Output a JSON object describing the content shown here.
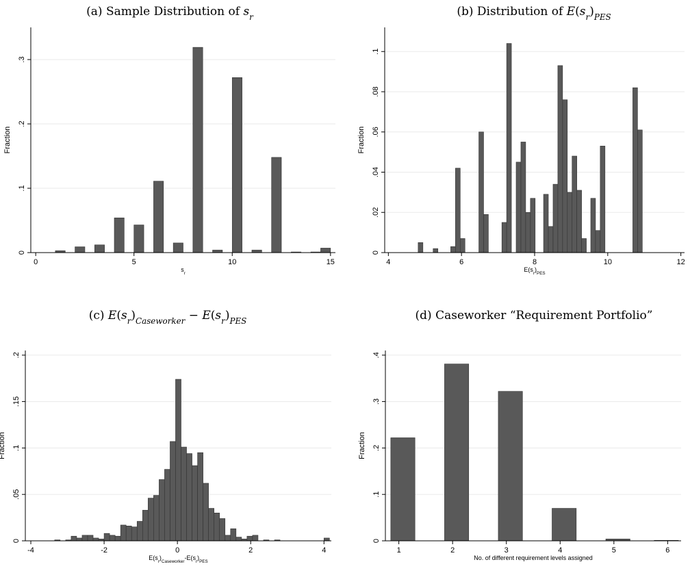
{
  "chart_data": [
    {
      "type": "histogram",
      "title": [
        {
          "text": "(a) Sample Distribution of "
        },
        {
          "text": "s",
          "italic": true
        },
        {
          "text": "r",
          "italic": true,
          "sub": true
        }
      ],
      "ylabel": "Fraction",
      "xlabel": [
        {
          "text": "s"
        },
        {
          "text": "r",
          "sub": true
        }
      ],
      "bins": [
        1,
        1.5,
        2,
        2.5,
        3,
        3.5,
        4,
        4.5,
        5,
        5.5,
        6,
        6.5,
        7,
        7.5,
        8,
        8.5,
        9,
        9.5,
        10,
        10.5,
        11,
        11.5,
        12,
        12.5,
        13,
        13.5,
        14,
        14.5,
        15
      ],
      "values": [
        0.003,
        0,
        0.009,
        0,
        0.012,
        0,
        0.054,
        0,
        0.043,
        0,
        0.111,
        0,
        0.015,
        0,
        0.319,
        0,
        0.004,
        0,
        0.272,
        0,
        0.004,
        0,
        0.148,
        0,
        0.001,
        0,
        0.001,
        0.007
      ],
      "xlim": [
        -0.25,
        15.25
      ],
      "xticks": [
        0,
        5,
        10,
        15
      ],
      "ylim": [
        0,
        0.35
      ],
      "yticks": [
        0,
        {
          "value": 0.1,
          "label": ".1"
        },
        {
          "value": 0.2,
          "label": ".2"
        },
        {
          "value": 0.3,
          "label": ".3"
        }
      ],
      "grid": true,
      "color": "#595959"
    },
    {
      "type": "histogram",
      "title": [
        {
          "text": "(b) Distribution of "
        },
        {
          "text": "E",
          "italic": true
        },
        {
          "text": "("
        },
        {
          "text": "s",
          "italic": true
        },
        {
          "text": "r",
          "italic": true,
          "sub": true
        },
        {
          "text": ")"
        },
        {
          "text": "PES",
          "italic": true,
          "sub": true
        }
      ],
      "ylabel": "Fraction",
      "xlabel": [
        {
          "text": "E(s"
        },
        {
          "text": "r",
          "sub": true
        },
        {
          "text": ")"
        },
        {
          "text": "PES",
          "sub": true
        }
      ],
      "bins": [
        4.815,
        4.945,
        5.225,
        5.355,
        5.705,
        5.835,
        5.965,
        6.095,
        6.475,
        6.605,
        6.735,
        7.105,
        7.235,
        7.365,
        7.495,
        7.625,
        7.755,
        7.885,
        8.015,
        8.245,
        8.375,
        8.505,
        8.635,
        8.765,
        8.895,
        9.025,
        9.155,
        9.285,
        9.415,
        9.535,
        9.665,
        9.795,
        9.925,
        10.685,
        10.815,
        10.945
      ],
      "values": [
        0.005,
        0,
        0.002,
        0,
        0.003,
        0.042,
        0.007,
        0,
        0.06,
        0.019,
        0,
        0.015,
        0.104,
        0,
        0.045,
        0.055,
        0.02,
        0.027,
        0,
        0.029,
        0.013,
        0.034,
        0.093,
        0.076,
        0.03,
        0.048,
        0.031,
        0.007,
        0,
        0.027,
        0.011,
        0.053,
        0,
        0.082,
        0.061
      ],
      "xlim": [
        3.9,
        12.1
      ],
      "xticks": [
        4,
        6,
        8,
        10,
        12
      ],
      "ylim": [
        0,
        0.112
      ],
      "yticks": [
        0,
        {
          "value": 0.02,
          "label": ".02"
        },
        {
          "value": 0.04,
          "label": ".04"
        },
        {
          "value": 0.06,
          "label": ".06"
        },
        {
          "value": 0.08,
          "label": ".08"
        },
        {
          "value": 0.1,
          "label": ".1"
        }
      ],
      "grid": true,
      "color": "#595959"
    },
    {
      "type": "histogram",
      "title": [
        {
          "text": "(c) "
        },
        {
          "text": "E",
          "italic": true
        },
        {
          "text": "("
        },
        {
          "text": "s",
          "italic": true
        },
        {
          "text": "r",
          "italic": true,
          "sub": true
        },
        {
          "text": ")"
        },
        {
          "text": "Caseworker",
          "italic": true,
          "sub": true
        },
        {
          "text": " − "
        },
        {
          "text": "E",
          "italic": true
        },
        {
          "text": "("
        },
        {
          "text": "s",
          "italic": true
        },
        {
          "text": "r",
          "italic": true,
          "sub": true
        },
        {
          "text": ")"
        },
        {
          "text": "PES",
          "italic": true,
          "sub": true
        }
      ],
      "ylabel": "Fraction",
      "xlabel": [
        {
          "text": "E(s"
        },
        {
          "text": "r",
          "sub": true
        },
        {
          "text": ")"
        },
        {
          "text": "Caseworker",
          "sub": true
        },
        {
          "text": "-E(s"
        },
        {
          "text": "r",
          "sub": true
        },
        {
          "text": ")"
        },
        {
          "text": "PES",
          "sub": true
        }
      ],
      "bins": [
        -3.35,
        -3.2,
        -3.05,
        -2.9,
        -2.75,
        -2.6,
        -2.45,
        -2.3,
        -2.15,
        -2,
        -1.85,
        -1.7,
        -1.55,
        -1.4,
        -1.25,
        -1.1,
        -0.95,
        -0.8,
        -0.65,
        -0.5,
        -0.35,
        -0.2,
        -0.05,
        0.1,
        0.25,
        0.4,
        0.55,
        0.7,
        0.85,
        1,
        1.15,
        1.3,
        1.45,
        1.6,
        1.75,
        1.9,
        2.05,
        2.2,
        2.35,
        2.5,
        2.65,
        2.8,
        2.95,
        3.1,
        3.25,
        3.4,
        3.55,
        3.7,
        3.85,
        4,
        4.15
      ],
      "values": [
        0.001,
        0,
        0.001,
        0.005,
        0.003,
        0.006,
        0.006,
        0.003,
        0.002,
        0.008,
        0.006,
        0.005,
        0.017,
        0.016,
        0.015,
        0.021,
        0.033,
        0.046,
        0.049,
        0.066,
        0.077,
        0.107,
        0.174,
        0.101,
        0.094,
        0.081,
        0.095,
        0.062,
        0.035,
        0.03,
        0.024,
        0.006,
        0.013,
        0.004,
        0.002,
        0.005,
        0.006,
        0,
        0.001,
        0,
        0.001,
        0,
        0,
        0,
        0,
        0,
        0,
        0,
        0,
        0.003
      ],
      "xlim": [
        -4.15,
        4.2
      ],
      "xticks": [
        -4,
        -2,
        0,
        2,
        4
      ],
      "ylim": [
        0,
        0.205
      ],
      "yticks": [
        0,
        {
          "value": 0.05,
          "label": ".05"
        },
        {
          "value": 0.1,
          "label": ".1"
        },
        {
          "value": 0.15,
          "label": ".15"
        },
        {
          "value": 0.2,
          "label": ".2"
        }
      ],
      "grid": true,
      "color": "#595959"
    },
    {
      "type": "histogram",
      "title": [
        {
          "text": "(d) Caseworker “Requirement Portfolio”"
        }
      ],
      "ylabel": "Fraction",
      "xlabel": [
        {
          "text": "No. of different requirement levels assigned"
        }
      ],
      "bins": [
        0.85,
        1.3,
        1.85,
        2.3,
        2.85,
        3.3,
        3.85,
        4.3,
        4.85,
        5.3,
        5.75,
        6.2
      ],
      "values": [
        0.222,
        0,
        0.381,
        0,
        0.322,
        0,
        0.07,
        0,
        0.004,
        0,
        0.001
      ],
      "xlim": [
        0.75,
        6.25
      ],
      "xticks": [
        1,
        2,
        3,
        4,
        5,
        6
      ],
      "ylim": [
        0,
        0.41
      ],
      "yticks": [
        0,
        {
          "value": 0.1,
          "label": ".1"
        },
        {
          "value": 0.2,
          "label": ".2"
        },
        {
          "value": 0.3,
          "label": ".3"
        },
        {
          "value": 0.4,
          "label": ".4"
        }
      ],
      "grid": true,
      "color": "#595959"
    }
  ]
}
